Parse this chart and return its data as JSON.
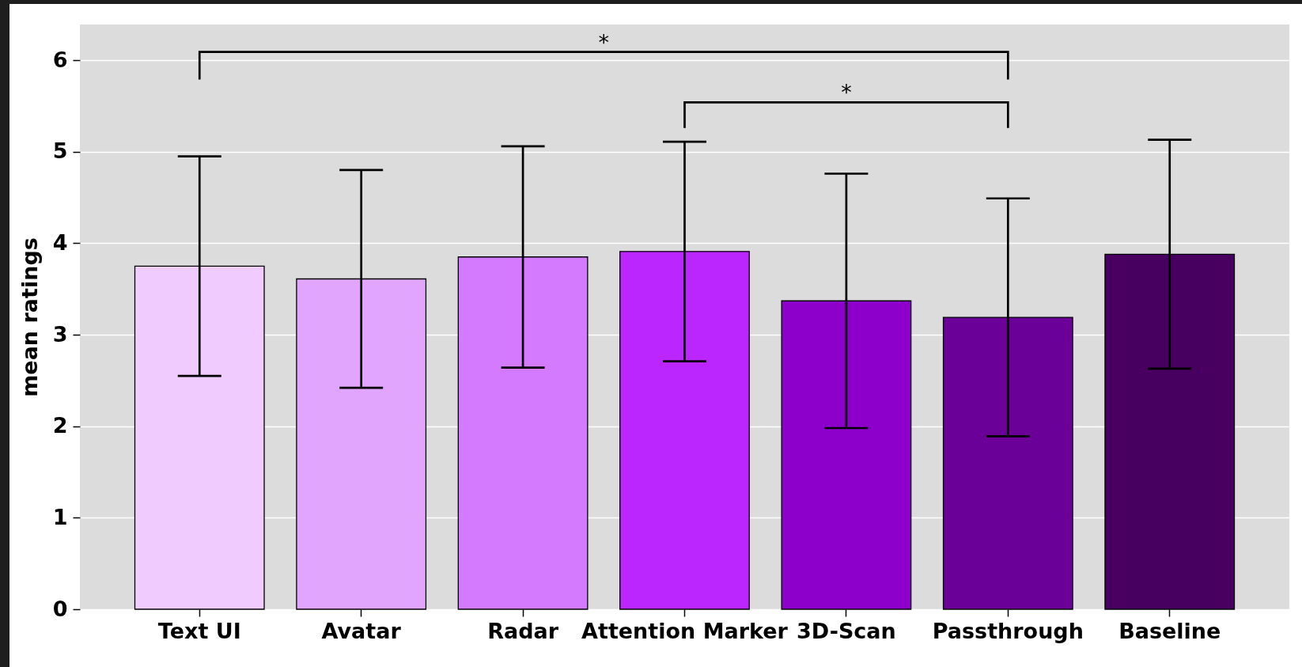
{
  "chart_data": {
    "type": "bar",
    "ylabel": "mean ratings",
    "categories": [
      "Text UI",
      "Avatar",
      "Radar",
      "Attention Marker",
      "3D-Scan",
      "Passthrough",
      "Baseline"
    ],
    "values": [
      3.75,
      3.61,
      3.85,
      3.91,
      3.37,
      3.19,
      3.88
    ],
    "errors": [
      1.2,
      1.19,
      1.21,
      1.2,
      1.39,
      1.3,
      1.25
    ],
    "colors": [
      "#f0cbfe",
      "#e1a5fe",
      "#d47afe",
      "#bb25fe",
      "#8d00cc",
      "#6b0099",
      "#480060"
    ],
    "ylim": [
      0,
      6.39
    ],
    "yticks": [
      0,
      1,
      2,
      3,
      4,
      5,
      6
    ],
    "grid": "y",
    "annotations": [
      "*",
      "*"
    ]
  }
}
